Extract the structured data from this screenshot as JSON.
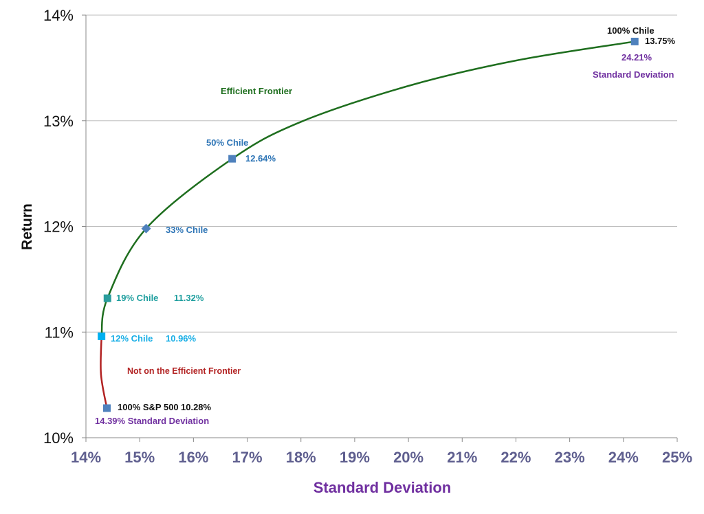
{
  "chart_data": {
    "type": "line",
    "title": "",
    "xlabel": "Standard Deviation",
    "ylabel": "Return",
    "xlim": [
      14,
      25
    ],
    "ylim": [
      10,
      14
    ],
    "x_ticks": [
      "14%",
      "15%",
      "16%",
      "17%",
      "18%",
      "19%",
      "20%",
      "21%",
      "22%",
      "23%",
      "24%",
      "25%"
    ],
    "y_ticks": [
      "10%",
      "11%",
      "12%",
      "13%",
      "14%"
    ],
    "grid": "horizontal",
    "colors": {
      "efficient": "#1E6E1E",
      "inefficient": "#B22222",
      "marker": "#4F81BD",
      "xlabel": "#7030A0",
      "xticks": "#5F5F8F"
    },
    "curve": {
      "inefficient": [
        [
          14.39,
          10.28
        ],
        [
          14.28,
          10.6
        ],
        [
          14.29,
          10.96
        ]
      ],
      "efficient": [
        [
          14.29,
          10.96
        ],
        [
          14.4,
          11.32
        ],
        [
          15.12,
          11.98
        ],
        [
          16.72,
          12.64
        ],
        [
          18,
          12.99
        ],
        [
          20,
          13.33
        ],
        [
          22,
          13.57
        ],
        [
          24.21,
          13.75
        ]
      ]
    },
    "annotations": {
      "efficient_frontier": "Efficient Frontier",
      "not_efficient": "Not on the Efficient Frontier"
    },
    "points": [
      {
        "name": "100% S&P 500",
        "sd": 14.39,
        "ret": 10.28,
        "label": "100% S&P 500",
        "value_label": "10.28%",
        "sd_label": "14.39% Standard Deviation",
        "marker": "square",
        "color": "#4F81BD",
        "text_color": "#111111"
      },
      {
        "name": "12% Chile",
        "sd": 14.29,
        "ret": 10.96,
        "label": "12% Chile",
        "value_label": "10.96%",
        "marker": "square",
        "color": "#00B0F0",
        "text_color": "#1AAFE6"
      },
      {
        "name": "19% Chile",
        "sd": 14.4,
        "ret": 11.32,
        "label": "19% Chile",
        "value_label": "11.32%",
        "marker": "square",
        "color": "#2A9D9D",
        "text_color": "#1E9E9E"
      },
      {
        "name": "33% Chile",
        "sd": 15.12,
        "ret": 11.98,
        "label": "33% Chile",
        "marker": "diamond",
        "color": "#4F81BD",
        "text_color": "#2E75B6"
      },
      {
        "name": "50% Chile",
        "sd": 16.72,
        "ret": 12.64,
        "label": "50% Chile",
        "value_label": "12.64%",
        "marker": "square",
        "color": "#4F81BD",
        "text_color": "#2E75B6"
      },
      {
        "name": "100% Chile",
        "sd": 24.21,
        "ret": 13.75,
        "label": "100% Chile",
        "value_label": "13.75%",
        "sd_label": "24.21%",
        "sd_label2": "Standard Deviation",
        "marker": "square",
        "color": "#4F81BD",
        "text_color": "#111111"
      }
    ]
  }
}
